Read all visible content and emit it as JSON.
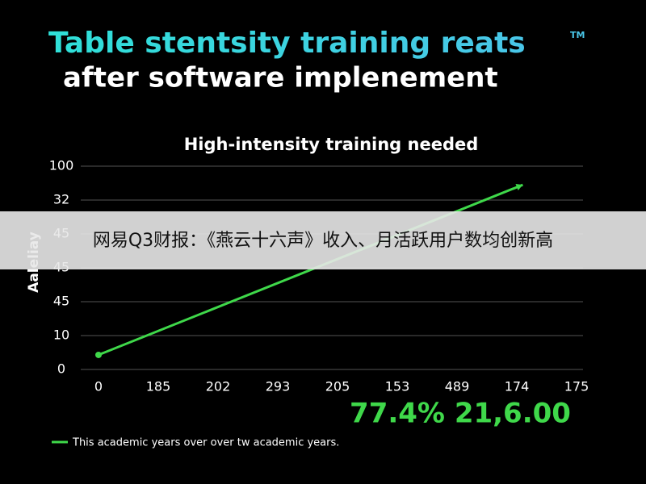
{
  "chart_data": {
    "type": "line",
    "title": "Table stentsity training reats",
    "title_mark": "TM",
    "title_line2": "after software implenement",
    "subtitle": "High-intensity training needed",
    "y_label": "Aaleliay",
    "x": [
      0,
      7.1
    ],
    "series": [
      {
        "name": "This academic years over over tw academic years.",
        "color": "#3fd84a",
        "values": [
          0.43,
          5.45
        ]
      }
    ],
    "xlim": [
      0,
      8
    ],
    "xticks": [
      {
        "value": 0,
        "label": "0"
      },
      {
        "value": 1,
        "label": "185"
      },
      {
        "value": 2,
        "label": "202"
      },
      {
        "value": 3,
        "label": "293"
      },
      {
        "value": 4,
        "label": "205"
      },
      {
        "value": 5,
        "label": "153"
      },
      {
        "value": 6,
        "label": "489"
      },
      {
        "value": 7,
        "label": "174"
      },
      {
        "value": 8,
        "label": "175"
      }
    ],
    "ylim": [
      0,
      6
    ],
    "yticks": [
      {
        "value": 0,
        "label": "0"
      },
      {
        "value": 1,
        "label": "10"
      },
      {
        "value": 2,
        "label": "45"
      },
      {
        "value": 3,
        "label": "45"
      },
      {
        "value": 4,
        "label": "45"
      },
      {
        "value": 5,
        "label": "32"
      },
      {
        "value": 6,
        "label": "100"
      }
    ],
    "grid": true,
    "highlight": "77.4% 21,6.00",
    "banner": "网易Q3财报：《燕云十六声》收入、月活跃用户数均创新高"
  }
}
